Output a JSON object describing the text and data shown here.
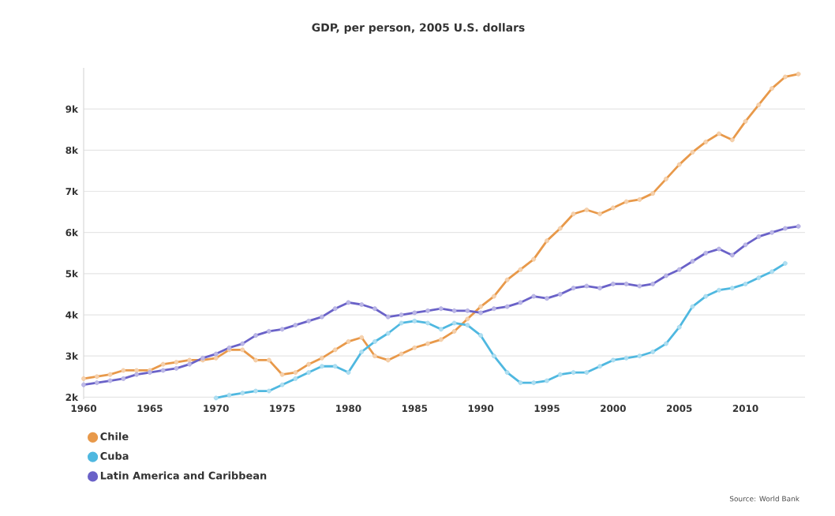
{
  "chart_data": {
    "type": "line",
    "title": "GDP, per person, 2005 U.S. dollars",
    "x": [
      1960,
      1961,
      1962,
      1963,
      1964,
      1965,
      1966,
      1967,
      1968,
      1969,
      1970,
      1971,
      1972,
      1973,
      1974,
      1975,
      1976,
      1977,
      1978,
      1979,
      1980,
      1981,
      1982,
      1983,
      1984,
      1985,
      1986,
      1987,
      1988,
      1989,
      1990,
      1991,
      1992,
      1993,
      1994,
      1995,
      1996,
      1997,
      1998,
      1999,
      2000,
      2001,
      2002,
      2003,
      2004,
      2005,
      2006,
      2007,
      2008,
      2009,
      2010,
      2011,
      2012,
      2013,
      2014
    ],
    "series": [
      {
        "name": "Chile",
        "color": "#e8994a",
        "values": [
          2450,
          2500,
          2550,
          2650,
          2650,
          2650,
          2800,
          2850,
          2900,
          2900,
          2950,
          3150,
          3150,
          2900,
          2900,
          2550,
          2600,
          2800,
          2950,
          3150,
          3350,
          3450,
          3000,
          2900,
          3050,
          3200,
          3300,
          3400,
          3600,
          3900,
          4200,
          4450,
          4850,
          5100,
          5350,
          5800,
          6100,
          6450,
          6550,
          6450,
          6600,
          6750,
          6800,
          6950,
          7300,
          7650,
          7950,
          8200,
          8400,
          8250,
          8700,
          9100,
          9500,
          9780,
          9850
        ]
      },
      {
        "name": "Cuba",
        "color": "#4fb8e0",
        "values": [
          null,
          null,
          null,
          null,
          null,
          null,
          null,
          null,
          null,
          null,
          1980,
          2050,
          2100,
          2150,
          2150,
          2300,
          2450,
          2600,
          2750,
          2750,
          2600,
          3100,
          3350,
          3550,
          3800,
          3850,
          3800,
          3650,
          3800,
          3750,
          3500,
          3000,
          2600,
          2350,
          2350,
          2400,
          2550,
          2600,
          2600,
          2750,
          2900,
          2950,
          3000,
          3100,
          3300,
          3700,
          4200,
          4450,
          4600,
          4650,
          4750,
          4900,
          5050,
          5250,
          null
        ]
      },
      {
        "name": "Latin America and Caribbean",
        "color": "#6a62c8",
        "values": [
          2300,
          2350,
          2400,
          2450,
          2550,
          2600,
          2650,
          2700,
          2800,
          2950,
          3050,
          3200,
          3300,
          3500,
          3600,
          3650,
          3750,
          3850,
          3950,
          4150,
          4300,
          4250,
          4150,
          3950,
          4000,
          4050,
          4100,
          4150,
          4100,
          4100,
          4050,
          4150,
          4200,
          4300,
          4450,
          4400,
          4500,
          4650,
          4700,
          4650,
          4750,
          4750,
          4700,
          4750,
          4950,
          5100,
          5300,
          5500,
          5600,
          5450,
          5700,
          5900,
          6000,
          6100,
          6150
        ]
      }
    ],
    "xlim": [
      1960,
      2014.5
    ],
    "xticks": [
      1960,
      1965,
      1970,
      1975,
      1980,
      1985,
      1990,
      1995,
      2000,
      2005,
      2010
    ],
    "ylim": [
      1950,
      10000
    ],
    "yticks": [
      {
        "value": 2000,
        "label": "2k"
      },
      {
        "value": 3000,
        "label": "3k"
      },
      {
        "value": 4000,
        "label": "4k"
      },
      {
        "value": 5000,
        "label": "5k"
      },
      {
        "value": 6000,
        "label": "6k"
      },
      {
        "value": 7000,
        "label": "7k"
      },
      {
        "value": 8000,
        "label": "8k"
      },
      {
        "value": 9000,
        "label": "9k"
      }
    ],
    "grid": "y",
    "legend": "bottom left",
    "marker": "circle",
    "line_style": "solid",
    "annotations": [
      "Source: World Bank"
    ]
  }
}
